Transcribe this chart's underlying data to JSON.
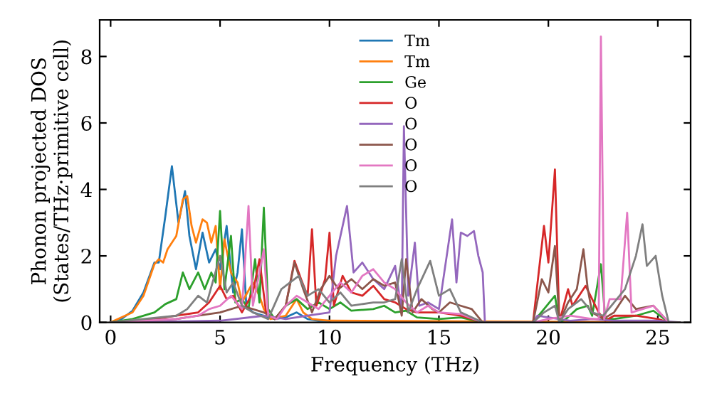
{
  "chart_data": {
    "type": "line",
    "xlabel": "Frequency (THz)",
    "ylabel": "Phonon projected DOS\n(States/THz·primitive cell)",
    "xlim": [
      -0.5,
      26.5
    ],
    "ylim": [
      0,
      9.1
    ],
    "xticks": [
      0,
      5,
      10,
      15,
      20,
      25
    ],
    "yticks": [
      0,
      2,
      4,
      6,
      8
    ],
    "grid": false,
    "legend": "top",
    "marker": "none",
    "line_style": "solid",
    "series": [
      {
        "name": "Tm",
        "color": "#1f77b4",
        "x": [
          0,
          0.5,
          1,
          1.5,
          2,
          2.2,
          2.5,
          2.8,
          3.1,
          3.4,
          3.6,
          3.9,
          4.2,
          4.5,
          4.8,
          5.0,
          5.3,
          5.6,
          5.8,
          6.0,
          6.2,
          6.5,
          7,
          7.5,
          8,
          8.5,
          9,
          9.5,
          10
        ],
        "values": [
          0,
          0.1,
          0.35,
          0.9,
          1.8,
          1.8,
          3.2,
          4.7,
          3.0,
          3.95,
          2.6,
          1.6,
          2.7,
          1.8,
          2.2,
          1.6,
          2.9,
          0.9,
          1.5,
          2.8,
          0.5,
          0.3,
          0.2,
          0.1,
          0.15,
          0.3,
          0.1,
          0.05,
          0.05
        ]
      },
      {
        "name": "Tm",
        "color": "#ff7f0e",
        "x": [
          0,
          1,
          1.5,
          2,
          2.2,
          2.4,
          2.6,
          3,
          3.3,
          3.5,
          3.7,
          3.9,
          4.2,
          4.4,
          4.6,
          4.8,
          5.0,
          5.2,
          5.5,
          5.8,
          6.0,
          6.5,
          6.8,
          7.0,
          7.3,
          8,
          8.5,
          8.8,
          9.2,
          10,
          26
        ],
        "values": [
          0,
          0.3,
          0.8,
          1.75,
          1.9,
          1.8,
          2.2,
          2.6,
          3.7,
          3.8,
          2.9,
          2.4,
          3.1,
          3.0,
          2.4,
          2.9,
          1.0,
          2.5,
          1.5,
          1.2,
          0.6,
          1.2,
          0.8,
          0.4,
          0.1,
          0.2,
          0.7,
          0.3,
          0.1,
          0.05,
          0
        ]
      },
      {
        "name": "Ge",
        "color": "#2ca02c",
        "x": [
          0,
          1,
          2,
          2.5,
          3,
          3.3,
          3.6,
          4.0,
          4.3,
          4.6,
          4.8,
          5.0,
          5.2,
          5.5,
          5.7,
          6.0,
          6.3,
          6.6,
          6.8,
          7.0,
          7.2,
          7.5,
          8,
          8.5,
          9,
          9.5,
          10,
          10.5,
          11,
          12,
          12.5,
          13,
          13.5,
          14,
          15,
          16,
          17,
          19.3,
          19.8,
          20.3,
          20.5,
          20.8,
          21.3,
          21.8,
          22,
          22.4,
          22.6,
          23,
          24,
          24.8,
          25.5,
          26
        ],
        "values": [
          0,
          0.1,
          0.3,
          0.55,
          0.7,
          1.5,
          1.0,
          1.5,
          1.0,
          1.5,
          1.2,
          3.35,
          1.0,
          2.6,
          0.6,
          0.7,
          0.4,
          1.9,
          0.6,
          3.45,
          0.4,
          0.1,
          0.5,
          0.7,
          0.4,
          0.6,
          0.4,
          0.6,
          0.35,
          0.4,
          0.5,
          0.3,
          0.35,
          0.15,
          0.1,
          0.15,
          0,
          0,
          0.4,
          0.8,
          0,
          0.1,
          0.4,
          0.5,
          0.2,
          1.75,
          0.1,
          0.1,
          0.2,
          0.35,
          0,
          0
        ]
      },
      {
        "name": "O",
        "color": "#d62728",
        "x": [
          0,
          2,
          3,
          4,
          4.5,
          5.0,
          5.3,
          5.6,
          6,
          6.5,
          6.8,
          7.1,
          7.5,
          8,
          8.4,
          8.7,
          9.0,
          9.2,
          9.4,
          9.8,
          10,
          10.2,
          10.6,
          11,
          11.5,
          12,
          12.5,
          13,
          13.5,
          14,
          15,
          16,
          17,
          19.3,
          19.8,
          20.0,
          20.3,
          20.5,
          20.9,
          21.1,
          21.4,
          21.7,
          22,
          22.3,
          22.6,
          23,
          24,
          25,
          25.5,
          26
        ],
        "values": [
          0,
          0.1,
          0.2,
          0.3,
          0.6,
          1.1,
          0.7,
          0.8,
          0.3,
          0.9,
          1.9,
          0.3,
          0.1,
          0.5,
          1.85,
          1.3,
          0.8,
          2.8,
          0.5,
          1.3,
          2.7,
          0.5,
          1.4,
          0.9,
          0.8,
          1.1,
          0.7,
          0.6,
          0.4,
          0.3,
          0.3,
          0.2,
          0,
          0,
          2.9,
          1.8,
          4.6,
          0,
          1.0,
          0.5,
          0.8,
          1.1,
          0.7,
          0.3,
          0.05,
          0.2,
          0.2,
          0.1,
          0,
          0
        ]
      },
      {
        "name": "O",
        "color": "#9467bd",
        "x": [
          0,
          5,
          7,
          8,
          9,
          10,
          10.3,
          10.8,
          11.1,
          11.5,
          12,
          12.5,
          13,
          13.3,
          13.4,
          13.6,
          13.9,
          14.1,
          14.5,
          15,
          15.6,
          15.8,
          16.0,
          16.3,
          16.6,
          16.8,
          17.0,
          17.1,
          19.3,
          19.5,
          20.5,
          21,
          22,
          23,
          25,
          26
        ],
        "values": [
          0,
          0.05,
          0.2,
          0.1,
          0.2,
          0.3,
          2.0,
          3.5,
          1.5,
          1.8,
          1.3,
          1.0,
          1.7,
          0.3,
          5.9,
          0.8,
          2.4,
          0.5,
          0.6,
          0.4,
          3.1,
          1.2,
          2.7,
          2.6,
          2.75,
          2.0,
          1.5,
          0,
          0,
          0.2,
          0.1,
          0.05,
          0.1,
          0.05,
          0.05,
          0
        ]
      },
      {
        "name": "O",
        "color": "#8c564b",
        "x": [
          0,
          3,
          4,
          5,
          6,
          7,
          7.5,
          8,
          8.4,
          8.8,
          9.2,
          9.6,
          10,
          10.4,
          11,
          11.5,
          12,
          12.5,
          13,
          13.3,
          13.5,
          13.8,
          14.2,
          14.7,
          15,
          15.5,
          16,
          16.5,
          17,
          19.3,
          19.7,
          20.0,
          20.3,
          20.5,
          20.9,
          21.3,
          21.6,
          21.8,
          22,
          22.5,
          23,
          23.5,
          24,
          24.8,
          25.5,
          26
        ],
        "values": [
          0,
          0.1,
          0.2,
          0.3,
          0.5,
          0.3,
          0.1,
          0.5,
          1.8,
          1.0,
          0.3,
          1.0,
          1.4,
          1.0,
          1.3,
          1.0,
          1.3,
          1.1,
          1.2,
          0.2,
          1.9,
          0.3,
          0.7,
          0.4,
          0.3,
          0.6,
          0.5,
          0.4,
          0,
          0,
          1.3,
          0.9,
          2.3,
          0,
          0.6,
          1.0,
          2.2,
          1.0,
          0.3,
          0.1,
          0.3,
          0.8,
          0.4,
          0.5,
          0,
          0
        ]
      },
      {
        "name": "O",
        "color": "#e377c2",
        "x": [
          0,
          3,
          4,
          4.5,
          5,
          5.5,
          6,
          6.3,
          6.5,
          6.8,
          7.0,
          7.2,
          7.6,
          8,
          8.5,
          9,
          9.5,
          10,
          10.5,
          11,
          11.5,
          12,
          12.5,
          13,
          13.5,
          14,
          14.5,
          15,
          16,
          17,
          19.3,
          20,
          21,
          22,
          22.3,
          22.4,
          22.55,
          22.8,
          23.3,
          23.6,
          23.8,
          24.3,
          24.8,
          25.5,
          26
        ],
        "values": [
          0,
          0.1,
          0.2,
          0.4,
          0.5,
          0.8,
          0.4,
          3.5,
          0.5,
          1.5,
          2.2,
          0.2,
          0.1,
          0.5,
          0.8,
          0.6,
          0.4,
          0.8,
          1.2,
          0.9,
          1.4,
          1.6,
          1.2,
          1.0,
          0.6,
          0.3,
          0.5,
          0.3,
          0.25,
          0,
          0,
          0.1,
          0.2,
          0.1,
          0.1,
          8.6,
          0.1,
          0.7,
          0.7,
          3.3,
          0.3,
          0.4,
          0.5,
          0,
          0
        ]
      },
      {
        "name": "O",
        "color": "#7f7f7f",
        "x": [
          0,
          3,
          3.5,
          4,
          4.4,
          5,
          5.3,
          5.6,
          6,
          6.5,
          7.2,
          7.8,
          8.2,
          8.6,
          9,
          9.5,
          10,
          10.5,
          11,
          12,
          12.5,
          13,
          13.3,
          13.6,
          14,
          14.6,
          15,
          15.5,
          16,
          17,
          19.3,
          19.8,
          20.3,
          20.5,
          20.9,
          21.5,
          22,
          22.5,
          23,
          23.5,
          24,
          24.3,
          24.5,
          24.9,
          25.2,
          25.5,
          26
        ],
        "values": [
          0,
          0.2,
          0.4,
          0.8,
          0.6,
          2.0,
          0.9,
          1.2,
          0.5,
          0.3,
          0.1,
          1.0,
          1.2,
          1.4,
          0.8,
          1.0,
          0.6,
          0.9,
          0.5,
          0.6,
          0.6,
          0.7,
          1.9,
          0.3,
          1.0,
          1.85,
          0.8,
          1.0,
          0.3,
          0,
          0,
          0.3,
          0.5,
          0,
          0.4,
          0.7,
          0.3,
          0.2,
          0.6,
          1.0,
          2.0,
          2.95,
          1.7,
          2.0,
          0.8,
          0,
          0
        ]
      }
    ]
  }
}
